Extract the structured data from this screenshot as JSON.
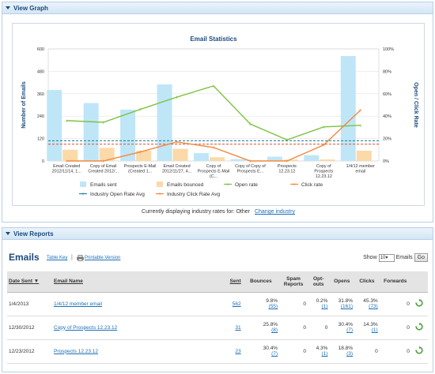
{
  "graph_panel": {
    "title": "View Graph"
  },
  "chart_data": {
    "type": "bar",
    "title": "Email Statistics",
    "ylabel": "Number of Emails",
    "y2label": "Open / Click Rate",
    "ylim": [
      0,
      600
    ],
    "y2lim": [
      0,
      100
    ],
    "yticks": [
      "0",
      "120",
      "240",
      "360",
      "480",
      "600"
    ],
    "y2ticks": [
      "0%",
      "20%",
      "40%",
      "60%",
      "80%",
      "100%"
    ],
    "categories": [
      [
        "Email Created",
        "2012/11/14, 1..."
      ],
      [
        "Copy of Email",
        "Created 2012/..."
      ],
      [
        "Prospects E-Mail",
        "(Created 1..."
      ],
      [
        "Email Created",
        "2012/11/27, 4..."
      ],
      [
        "Copy of",
        "Prospects E-Mail",
        "(C..."
      ],
      [
        "Copy of Copy of",
        "Prospects E..."
      ],
      [
        "Prospects",
        "12.23.12"
      ],
      [
        "Copy of",
        "Prospects",
        "12.23.12"
      ],
      [
        "1/4/12 member",
        "email"
      ]
    ],
    "series": [
      {
        "name": "Emails sent",
        "kind": "bar",
        "axis": "left",
        "color": "#bfe6f7",
        "values": [
          380,
          310,
          275,
          410,
          42,
          10,
          23,
          31,
          562
        ]
      },
      {
        "name": "Emails bounced",
        "kind": "bar",
        "axis": "left",
        "color": "#fbd9a8",
        "values": [
          60,
          70,
          55,
          65,
          20,
          3,
          7,
          8,
          55
        ]
      },
      {
        "name": "Open rate",
        "kind": "line",
        "axis": "right",
        "color": "#7ec242",
        "values": [
          36,
          34.5,
          46,
          57,
          67,
          33,
          18.8,
          30.4,
          31.8
        ]
      },
      {
        "name": "Click rate",
        "kind": "line",
        "axis": "right",
        "color": "#f08a3e",
        "values": [
          0,
          0,
          8,
          17,
          12,
          0,
          0,
          14.3,
          45.3
        ]
      },
      {
        "name": "Industry Open Rate Avg",
        "kind": "hline",
        "axis": "right",
        "color": "#2d86a8",
        "dash": "3,2",
        "value": 18
      },
      {
        "name": "Industry Click Rate Avg",
        "kind": "hline",
        "axis": "right",
        "color": "#e0603a",
        "dash": "3,2",
        "value": 15
      }
    ],
    "legend": [
      {
        "label": "Emails sent",
        "swatch": "bar",
        "color": "#bfe6f7"
      },
      {
        "label": "Emails bounced",
        "swatch": "bar",
        "color": "#fbd9a8"
      },
      {
        "label": "Open rate",
        "swatch": "line",
        "color": "#7ec242"
      },
      {
        "label": "Click rate",
        "swatch": "line",
        "color": "#f08a3e"
      },
      {
        "label": "Industry Open Rate Avg",
        "swatch": "line",
        "color": "#2d86a8"
      },
      {
        "label": "Industry Click Rate Avg",
        "swatch": "line",
        "color": "#f08a3e"
      }
    ]
  },
  "industry": {
    "text": "Currently displaying industry rates for: Other",
    "link": "Change industry"
  },
  "reports_panel": {
    "title": "View Reports"
  },
  "emails": {
    "title": "Emails",
    "table_key": "Table Key",
    "separator": "|",
    "printable": "Printable Version",
    "show_label": "Show",
    "show_value": "10",
    "show_suffix": "Emails",
    "go_label": "Go"
  },
  "table": {
    "headers": {
      "date_sent": "Date Sent",
      "email_name": "Email Name",
      "sent": "Sent",
      "bounces": "Bounces",
      "spam": "Spam Reports",
      "optouts": "Opt-outs",
      "opens": "Opens",
      "clicks": "Clicks",
      "forwards": "Forwards"
    },
    "sort_indicator": "▼",
    "rows": [
      {
        "date": "1/4/2013",
        "name": "1/4/12 member email",
        "sent": "562",
        "bounces_pct": "9.8%",
        "bounces_n": "(55)",
        "spam": "0",
        "optouts_pct": "0.2%",
        "optouts_n": "(1)",
        "opens_pct": "31.8%",
        "opens_n": "(161)",
        "clicks_pct": "45.3%",
        "clicks_n": "(73)",
        "forwards": "0"
      },
      {
        "date": "12/30/2012",
        "name": "Copy of Prospects 12.23.12",
        "sent": "31",
        "bounces_pct": "25.8%",
        "bounces_n": "(8)",
        "spam": "0",
        "optouts_pct": "0",
        "optouts_n": "",
        "opens_pct": "30.4%",
        "opens_n": "(7)",
        "clicks_pct": "14.3%",
        "clicks_n": "(1)",
        "forwards": "0"
      },
      {
        "date": "12/23/2012",
        "name": "Prospects 12.23.12",
        "sent": "23",
        "bounces_pct": "30.4%",
        "bounces_n": "(7)",
        "spam": "0",
        "optouts_pct": "4.3%",
        "optouts_n": "(1)",
        "opens_pct": "18.8%",
        "opens_n": "(3)",
        "clicks_pct": "0",
        "clicks_n": "",
        "forwards": "0"
      }
    ]
  },
  "icons": {
    "print": "printer-icon",
    "refresh": "refresh-icon",
    "toggle": "triangle-down-icon"
  }
}
